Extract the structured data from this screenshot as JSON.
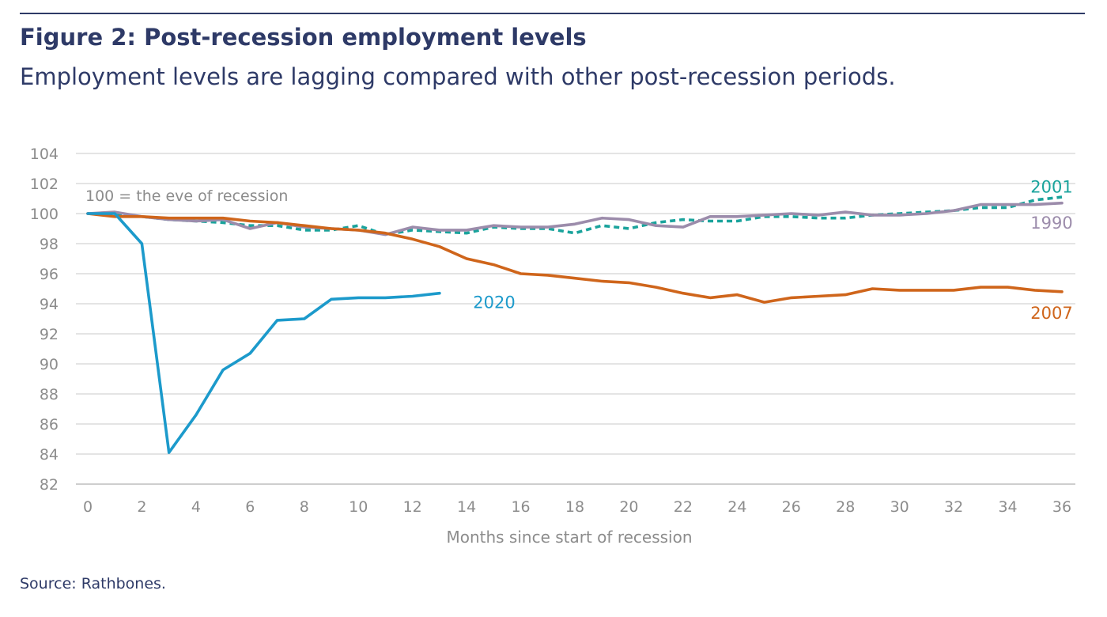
{
  "title": "Figure 2: Post-recession employment levels",
  "subtitle": "Employment levels are lagging compared with other post-recession periods.",
  "source": "Source: Rathbones.",
  "colors": {
    "2020": "#1c9acb",
    "2007": "#cf651b",
    "2001": "#1aa39c",
    "1990": "#9c8cab",
    "text": "#2e3a67",
    "axis": "#8c8c8c",
    "grid": "#d4d4d4"
  },
  "chart_data": {
    "type": "line",
    "xlabel": "Months since start of recession",
    "ylabel": "",
    "xlim": [
      0,
      36
    ],
    "ylim": [
      82,
      104
    ],
    "xticks": [
      0,
      2,
      4,
      6,
      8,
      10,
      12,
      14,
      16,
      18,
      20,
      22,
      24,
      26,
      28,
      30,
      32,
      34,
      36
    ],
    "yticks": [
      82,
      84,
      86,
      88,
      90,
      92,
      94,
      96,
      98,
      100,
      102,
      104
    ],
    "grid": true,
    "annotation": "100 = the eve of recession",
    "series": [
      {
        "name": "2020",
        "dashed": false,
        "x": [
          0,
          1,
          2,
          3,
          4,
          5,
          6,
          7,
          8,
          9,
          10,
          11,
          12,
          13
        ],
        "values": [
          100,
          100,
          98.0,
          84.1,
          86.6,
          89.6,
          90.7,
          92.9,
          93.0,
          94.3,
          94.4,
          94.4,
          94.5,
          94.7
        ]
      },
      {
        "name": "2007",
        "dashed": false,
        "x": [
          0,
          1,
          2,
          3,
          4,
          5,
          6,
          7,
          8,
          9,
          10,
          11,
          12,
          13,
          14,
          15,
          16,
          17,
          18,
          19,
          20,
          21,
          22,
          23,
          24,
          25,
          26,
          27,
          28,
          29,
          30,
          31,
          32,
          33,
          34,
          35,
          36
        ],
        "values": [
          100,
          99.8,
          99.8,
          99.7,
          99.7,
          99.7,
          99.5,
          99.4,
          99.2,
          99.0,
          98.9,
          98.7,
          98.3,
          97.8,
          97.0,
          96.6,
          96.0,
          95.9,
          95.7,
          95.5,
          95.4,
          95.1,
          94.7,
          94.4,
          94.6,
          94.1,
          94.4,
          94.5,
          94.6,
          95.0,
          94.9,
          94.9,
          94.9,
          95.1,
          95.1,
          94.9,
          94.8
        ]
      },
      {
        "name": "2001",
        "dashed": true,
        "x": [
          0,
          1,
          2,
          3,
          4,
          5,
          6,
          7,
          8,
          9,
          10,
          11,
          12,
          13,
          14,
          15,
          16,
          17,
          18,
          19,
          20,
          21,
          22,
          23,
          24,
          25,
          26,
          27,
          28,
          29,
          30,
          31,
          32,
          33,
          34,
          35,
          36
        ],
        "values": [
          100,
          99.9,
          99.8,
          99.6,
          99.5,
          99.4,
          99.2,
          99.2,
          98.9,
          98.9,
          99.2,
          98.6,
          98.9,
          98.8,
          98.7,
          99.1,
          99.0,
          99.0,
          98.7,
          99.2,
          99.0,
          99.4,
          99.6,
          99.5,
          99.5,
          99.8,
          99.8,
          99.7,
          99.7,
          99.9,
          100.0,
          100.1,
          100.2,
          100.4,
          100.4,
          100.9,
          101.1
        ]
      },
      {
        "name": "1990",
        "dashed": false,
        "x": [
          0,
          1,
          2,
          3,
          4,
          5,
          6,
          7,
          8,
          9,
          10,
          11,
          12,
          13,
          14,
          15,
          16,
          17,
          18,
          19,
          20,
          21,
          22,
          23,
          24,
          25,
          26,
          27,
          28,
          29,
          30,
          31,
          32,
          33,
          34,
          35,
          36
        ],
        "values": [
          100,
          100.1,
          99.8,
          99.6,
          99.5,
          99.6,
          99.0,
          99.4,
          99.1,
          99.0,
          98.9,
          98.6,
          99.1,
          98.9,
          98.9,
          99.2,
          99.1,
          99.1,
          99.3,
          99.7,
          99.6,
          99.2,
          99.1,
          99.8,
          99.8,
          99.9,
          100.0,
          99.9,
          100.1,
          99.9,
          99.9,
          100.0,
          100.2,
          100.6,
          100.6,
          100.6,
          100.7
        ]
      }
    ]
  }
}
